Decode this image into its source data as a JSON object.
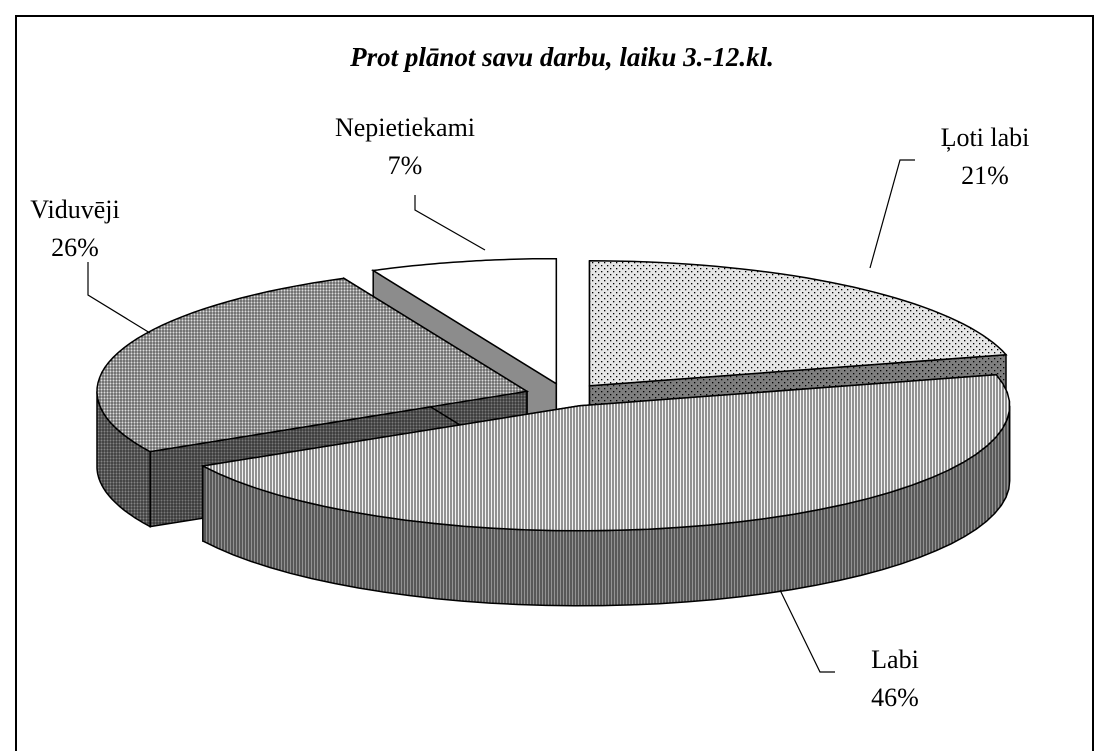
{
  "chart_data": {
    "type": "pie3d",
    "title": "Prot plānot savu darbu, laiku 3.-12.kl.",
    "categories": [
      "Ļoti labi",
      "Labi",
      "Viduvēji",
      "Nepietiekami"
    ],
    "values": [
      21,
      46,
      26,
      7
    ],
    "value_labels": [
      "21%",
      "46%",
      "26%",
      "7%"
    ],
    "colors": [
      "#e6e6e6",
      "#f4f4f4",
      "#dcdcdc",
      "#ffffff"
    ]
  }
}
